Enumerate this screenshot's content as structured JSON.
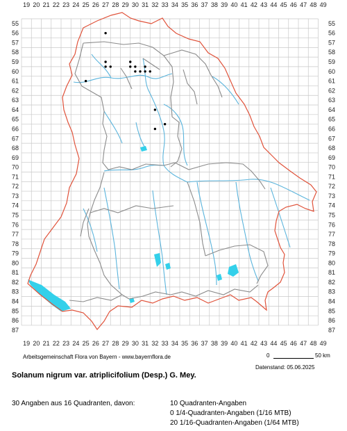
{
  "map": {
    "x_labels": [
      "19",
      "20",
      "21",
      "22",
      "23",
      "24",
      "25",
      "26",
      "27",
      "28",
      "29",
      "30",
      "31",
      "32",
      "33",
      "34",
      "35",
      "36",
      "37",
      "38",
      "39",
      "40",
      "41",
      "42",
      "43",
      "44",
      "45",
      "46",
      "47",
      "48",
      "49"
    ],
    "y_labels": [
      "55",
      "56",
      "57",
      "58",
      "59",
      "60",
      "61",
      "62",
      "63",
      "64",
      "65",
      "66",
      "67",
      "68",
      "69",
      "70",
      "71",
      "72",
      "73",
      "74",
      "75",
      "76",
      "77",
      "78",
      "79",
      "80",
      "81",
      "82",
      "83",
      "84",
      "85",
      "86",
      "87"
    ],
    "colors": {
      "grid": "#c8c8c8",
      "state_border": "#e0523a",
      "district_border": "#8a8a8a",
      "rivers": "#5ab4dc",
      "lakes": "#33d0ea",
      "dots": "#000000"
    },
    "occurrences": [
      {
        "col": "27",
        "row": "56"
      },
      {
        "col": "27",
        "row": "59"
      },
      {
        "col": "27",
        "row": "59.5"
      },
      {
        "col": "27.5",
        "row": "59.5"
      },
      {
        "col": "29.5",
        "row": "59"
      },
      {
        "col": "29.5",
        "row": "59.5"
      },
      {
        "col": "30",
        "row": "59.5"
      },
      {
        "col": "30",
        "row": "60"
      },
      {
        "col": "30.5",
        "row": "60"
      },
      {
        "col": "31",
        "row": "59.5"
      },
      {
        "col": "31",
        "row": "60"
      },
      {
        "col": "31.5",
        "row": "60"
      },
      {
        "col": "25",
        "row": "61"
      },
      {
        "col": "32",
        "row": "64"
      },
      {
        "col": "33",
        "row": "65.5"
      },
      {
        "col": "32",
        "row": "66"
      }
    ]
  },
  "footer": {
    "organization": "Arbeitsgemeinschaft Flora von Bayern - www.bayernflora.de",
    "scale_start": "0",
    "scale_end": "50 km",
    "date": "Datenstand: 05.06.2025",
    "title": "Solanum nigrum var. atriplicifolium (Desp.) G. Mey.",
    "summary": "30 Angaben aus 16 Quadranten, davon:",
    "stats": [
      "10 Quadranten-Angaben",
      "0 1/4-Quadranten-Angaben (1/16 MTB)",
      "20 1/16-Quadranten-Angaben (1/64 MTB)"
    ]
  }
}
